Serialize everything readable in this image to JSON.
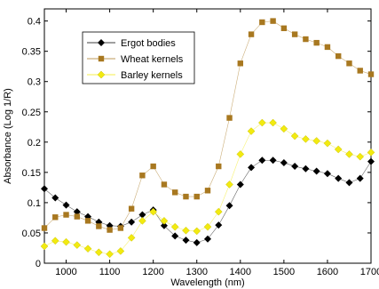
{
  "chart_data": {
    "type": "scatter",
    "xlabel": "Wavelength (nm)",
    "ylabel": "Absorbance (Log 1/R)",
    "xlim": [
      950,
      1700
    ],
    "ylim": [
      0,
      0.42
    ],
    "xticks": [
      1000,
      1100,
      1200,
      1300,
      1400,
      1500,
      1600,
      1700
    ],
    "yticks": [
      0,
      0.05,
      0.1,
      0.15,
      0.2,
      0.25,
      0.3,
      0.35,
      0.4
    ],
    "ytick_labels": [
      "0",
      "0.05",
      "0.1",
      "0.15",
      "0.2",
      "0.25",
      "0.3",
      "0.35",
      "0.4"
    ],
    "grid": false,
    "legend_position": "top-left",
    "x": [
      950,
      975,
      1000,
      1025,
      1050,
      1075,
      1100,
      1125,
      1150,
      1175,
      1200,
      1225,
      1250,
      1275,
      1300,
      1325,
      1350,
      1375,
      1400,
      1425,
      1450,
      1475,
      1500,
      1525,
      1550,
      1575,
      1600,
      1625,
      1650,
      1675,
      1700
    ],
    "series": [
      {
        "name": "Ergot bodies",
        "marker": "diamond",
        "color": "#000000",
        "values": [
          0.123,
          0.108,
          0.096,
          0.085,
          0.077,
          0.068,
          0.062,
          0.061,
          0.068,
          0.08,
          0.088,
          0.062,
          0.045,
          0.038,
          0.034,
          0.04,
          0.063,
          0.095,
          0.13,
          0.158,
          0.17,
          0.17,
          0.166,
          0.16,
          0.156,
          0.152,
          0.148,
          0.14,
          0.133,
          0.14,
          0.168
        ]
      },
      {
        "name": "Wheat kernels",
        "marker": "square",
        "color": "#a87820",
        "values": [
          0.058,
          0.076,
          0.08,
          0.077,
          0.07,
          0.061,
          0.055,
          0.058,
          0.09,
          0.145,
          0.16,
          0.13,
          0.117,
          0.11,
          0.11,
          0.12,
          0.16,
          0.24,
          0.33,
          0.378,
          0.398,
          0.4,
          0.388,
          0.378,
          0.37,
          0.364,
          0.357,
          0.342,
          0.33,
          0.318,
          0.312
        ]
      },
      {
        "name": "Barley kernels",
        "marker": "diamond",
        "color": "#f2ea10",
        "values": [
          0.028,
          0.037,
          0.035,
          0.03,
          0.024,
          0.018,
          0.015,
          0.02,
          0.042,
          0.07,
          0.085,
          0.07,
          0.06,
          0.054,
          0.053,
          0.06,
          0.085,
          0.13,
          0.18,
          0.218,
          0.232,
          0.232,
          0.222,
          0.21,
          0.205,
          0.202,
          0.198,
          0.188,
          0.18,
          0.176,
          0.183
        ]
      }
    ]
  }
}
